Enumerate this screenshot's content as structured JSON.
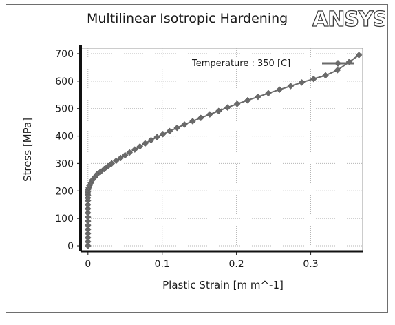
{
  "chart_data": {
    "type": "line",
    "title": "Multilinear Isotropic Hardening",
    "logo_text": "ANSYS",
    "xlabel": "Plastic Strain  [m m^-1]",
    "ylabel": "Stress  [MPa]",
    "xlim": [
      -0.01,
      0.37
    ],
    "ylim": [
      -20,
      720
    ],
    "x_ticks": [
      0,
      0.1,
      0.2,
      0.3
    ],
    "x_tick_labels": [
      "0",
      "0.1",
      "0.2",
      "0.3"
    ],
    "y_ticks": [
      0,
      100,
      200,
      300,
      400,
      500,
      600,
      700
    ],
    "y_tick_labels": [
      "0",
      "100",
      "200",
      "300",
      "400",
      "500",
      "600",
      "700"
    ],
    "grid": true,
    "legend_position": "top-right",
    "series": [
      {
        "name": "Temperature : 350 [C]",
        "color": "#6a6a6a",
        "marker": "diamond",
        "x": [
          0,
          0,
          0,
          0,
          0,
          0,
          0,
          0,
          0,
          0,
          0,
          0,
          0,
          0,
          0,
          0,
          0,
          0.001,
          0.002,
          0.004,
          0.006,
          0.009,
          0.012,
          0.017,
          0.022,
          0.027,
          0.032,
          0.038,
          0.044,
          0.05,
          0.056,
          0.063,
          0.07,
          0.077,
          0.085,
          0.093,
          0.101,
          0.11,
          0.12,
          0.13,
          0.141,
          0.152,
          0.164,
          0.176,
          0.188,
          0.201,
          0.215,
          0.229,
          0.243,
          0.258,
          0.273,
          0.288,
          0.304,
          0.32,
          0.336,
          0.352,
          0.365
        ],
        "y": [
          0,
          15,
          30,
          45,
          60,
          75,
          90,
          105,
          120,
          135,
          150,
          165,
          175,
          185,
          192,
          198,
          205,
          212,
          220,
          230,
          240,
          250,
          260,
          270,
          280,
          290,
          300,
          310,
          320,
          330,
          340,
          351,
          362,
          373,
          385,
          396,
          407,
          418,
          430,
          442,
          454,
          466,
          479,
          491,
          504,
          517,
          530,
          543,
          556,
          569,
          582,
          595,
          608,
          621,
          640,
          670,
          695
        ]
      }
    ]
  }
}
